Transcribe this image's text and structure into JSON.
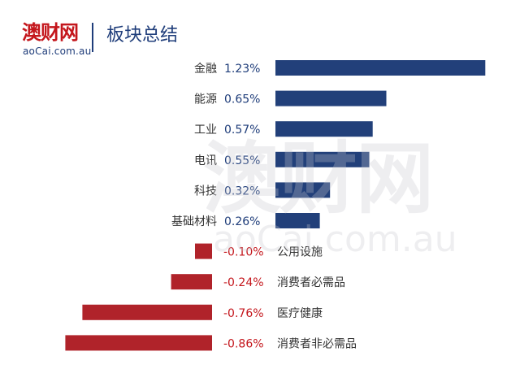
{
  "header": {
    "logo_text": "澳财网",
    "logo_url": "aoCai.com.au",
    "title": "板块总结"
  },
  "watermark": {
    "text": "澳财网",
    "url": "aoCai.com.au"
  },
  "colors": {
    "positive": "#22407a",
    "negative": "#b0232a",
    "title": "#1f3d7a",
    "logo": "#c4161c"
  },
  "chart_data": {
    "type": "bar",
    "orientation": "horizontal",
    "categories": [
      "金融",
      "能源",
      "工业",
      "电讯",
      "科技",
      "基础材料",
      "公用设施",
      "消费者必需品",
      "医疗健康",
      "消费者非必需品"
    ],
    "values": [
      1.23,
      0.65,
      0.57,
      0.55,
      0.32,
      0.26,
      -0.1,
      -0.24,
      -0.76,
      -0.86
    ],
    "labels": [
      "1.23%",
      "0.65%",
      "0.57%",
      "0.55%",
      "0.32%",
      "0.26%",
      "-0.10%",
      "-0.24%",
      "-0.76%",
      "-0.86%"
    ],
    "unit": "%"
  }
}
